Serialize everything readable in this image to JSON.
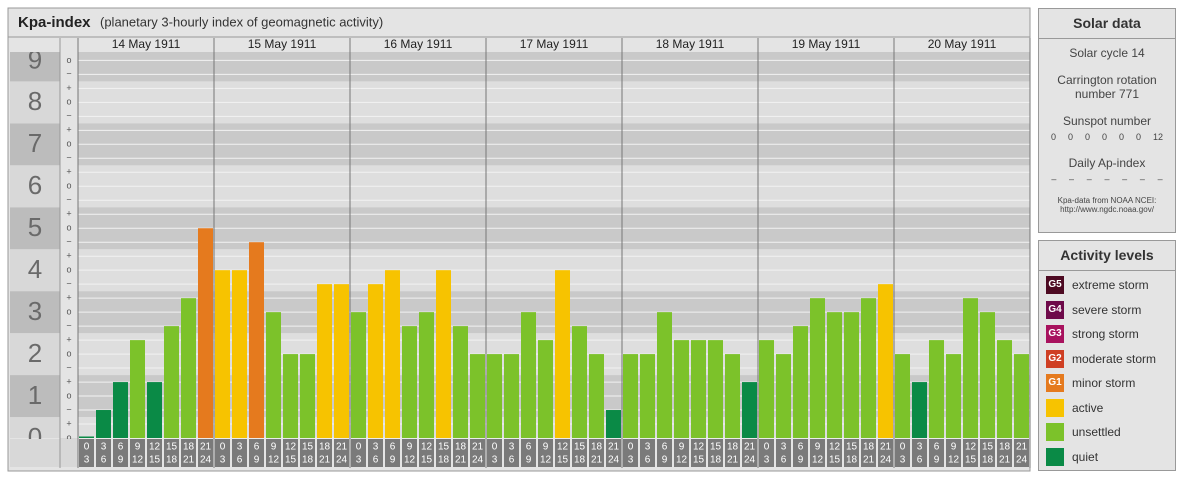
{
  "chart_data": {
    "type": "bar",
    "title": "Kpa-index",
    "subtitle": "(planetary 3-hourly index of geomagnetic activity)",
    "days": [
      "14 May 1911",
      "15 May 1911",
      "16 May 1911",
      "17 May 1911",
      "18 May 1911",
      "19 May 1911",
      "20 May 1911"
    ],
    "slots": [
      [
        "0",
        "3"
      ],
      [
        "3",
        "6"
      ],
      [
        "6",
        "9"
      ],
      [
        "9",
        "12"
      ],
      [
        "12",
        "15"
      ],
      [
        "15",
        "18"
      ],
      [
        "18",
        "21"
      ],
      [
        "21",
        "24"
      ]
    ],
    "values": [
      0,
      0.667,
      1.333,
      2.333,
      1.333,
      2.667,
      3.333,
      5,
      4,
      4,
      4.667,
      3,
      2,
      2,
      3.667,
      3.667,
      3,
      3.667,
      4,
      2.667,
      3,
      4,
      2.667,
      2,
      2,
      2,
      3,
      2.333,
      4,
      2.667,
      2,
      0.667,
      2,
      2,
      3,
      2.333,
      2.333,
      2.333,
      2,
      1.333,
      2.333,
      2,
      2.667,
      3.333,
      3,
      3,
      3.333,
      3.667,
      2,
      1.333,
      2.333,
      2,
      3.333,
      3,
      2.333,
      2
    ],
    "colors": [
      "#0a8a46",
      "#0a8a46",
      "#0a8a46",
      "#7cc22a",
      "#0a8a46",
      "#7cc22a",
      "#7cc22a",
      "#e57a1e",
      "#f7c300",
      "#f7c300",
      "#e57a1e",
      "#7cc22a",
      "#7cc22a",
      "#7cc22a",
      "#f7c300",
      "#f7c300",
      "#7cc22a",
      "#f7c300",
      "#f7c300",
      "#7cc22a",
      "#7cc22a",
      "#f7c300",
      "#7cc22a",
      "#7cc22a",
      "#7cc22a",
      "#7cc22a",
      "#7cc22a",
      "#7cc22a",
      "#f7c300",
      "#7cc22a",
      "#7cc22a",
      "#0a8a46",
      "#7cc22a",
      "#7cc22a",
      "#7cc22a",
      "#7cc22a",
      "#7cc22a",
      "#7cc22a",
      "#7cc22a",
      "#0a8a46",
      "#7cc22a",
      "#7cc22a",
      "#7cc22a",
      "#7cc22a",
      "#7cc22a",
      "#7cc22a",
      "#7cc22a",
      "#f7c300",
      "#7cc22a",
      "#0a8a46",
      "#7cc22a",
      "#7cc22a",
      "#7cc22a",
      "#7cc22a",
      "#7cc22a",
      "#7cc22a"
    ],
    "ylim": [
      0,
      9.2
    ],
    "yticks": [
      0,
      1,
      2,
      3,
      4,
      5,
      6,
      7,
      8,
      9
    ],
    "minor_yticks": [
      {
        "value": 0,
        "label": "o"
      },
      {
        "value": 0.333,
        "label": "+"
      },
      {
        "value": 0.667,
        "label": "−"
      },
      {
        "value": 1,
        "label": "o"
      },
      {
        "value": 1.333,
        "label": "+"
      },
      {
        "value": 1.667,
        "label": "−"
      },
      {
        "value": 2,
        "label": "o"
      },
      {
        "value": 2.333,
        "label": "+"
      },
      {
        "value": 2.667,
        "label": "−"
      },
      {
        "value": 3,
        "label": "o"
      },
      {
        "value": 3.333,
        "label": "+"
      },
      {
        "value": 3.667,
        "label": "−"
      },
      {
        "value": 4,
        "label": "o"
      },
      {
        "value": 4.333,
        "label": "+"
      },
      {
        "value": 4.667,
        "label": "−"
      },
      {
        "value": 5,
        "label": "o"
      },
      {
        "value": 5.333,
        "label": "+"
      },
      {
        "value": 5.667,
        "label": "−"
      },
      {
        "value": 6,
        "label": "o"
      },
      {
        "value": 6.333,
        "label": "+"
      },
      {
        "value": 6.667,
        "label": "−"
      },
      {
        "value": 7,
        "label": "o"
      },
      {
        "value": 7.333,
        "label": "+"
      },
      {
        "value": 7.667,
        "label": "−"
      },
      {
        "value": 8,
        "label": "o"
      },
      {
        "value": 8.333,
        "label": "+"
      },
      {
        "value": 8.667,
        "label": "−"
      },
      {
        "value": 9,
        "label": "o"
      }
    ],
    "grid": true,
    "solar_data": {
      "title": "Solar data",
      "solar_cycle": "Solar cycle 14",
      "carrington": "Carrington rotation number 771",
      "sunspot_title": "Sunspot number",
      "sunspot_numbers": [
        0,
        0,
        0,
        0,
        0,
        0,
        12
      ],
      "ap_title": "Daily Ap-index",
      "ap_values": [
        "–",
        "–",
        "–",
        "–",
        "–",
        "–",
        "–"
      ],
      "source": "Kpa-data from NOAA NCEI:",
      "source_url": "http://www.ngdc.noaa.gov/"
    },
    "legend": {
      "title": "Activity levels",
      "items": [
        {
          "code": "G5",
          "label": "extreme storm",
          "color": "#4d0a22"
        },
        {
          "code": "G4",
          "label": "severe storm",
          "color": "#6e0a4a"
        },
        {
          "code": "G3",
          "label": "strong storm",
          "color": "#a8125e"
        },
        {
          "code": "G2",
          "label": "moderate storm",
          "color": "#cf3f23"
        },
        {
          "code": "G1",
          "label": "minor storm",
          "color": "#e57a1e"
        },
        {
          "label": "active",
          "color": "#f7c300"
        },
        {
          "label": "unsettled",
          "color": "#7cc22a"
        },
        {
          "label": "quiet",
          "color": "#0a8a46"
        }
      ]
    }
  }
}
